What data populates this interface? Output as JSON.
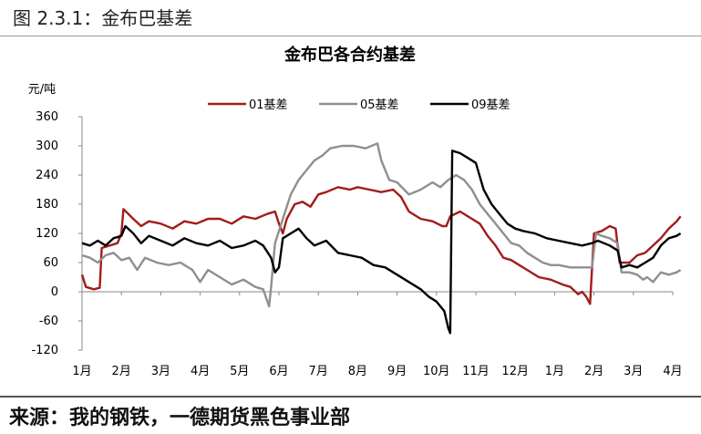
{
  "figure": {
    "caption": "图 2.3.1：金布巴基差",
    "source": "来源：我的钢铁，一德期货黑色事业部"
  },
  "colors": {
    "series_01": "#a31b1b",
    "series_05": "#8f8f8f",
    "series_09": "#000000"
  },
  "chart_data": {
    "type": "line",
    "title": "金布巴各合约基差",
    "ylabel": "元/吨",
    "xlabel": "",
    "ylim": [
      -120,
      360
    ],
    "yticks": [
      -120,
      -60,
      0,
      60,
      120,
      180,
      240,
      300,
      360
    ],
    "x_categories": [
      "1月",
      "2月",
      "3月",
      "4月",
      "5月",
      "6月",
      "7月",
      "8月",
      "9月",
      "10月",
      "11月",
      "12月",
      "1月",
      "2月",
      "3月",
      "4月"
    ],
    "legend_position": "top-center",
    "series": [
      {
        "name": "01基差",
        "color": "#a31b1b",
        "points": [
          [
            0.0,
            35
          ],
          [
            0.1,
            10
          ],
          [
            0.3,
            5
          ],
          [
            0.45,
            8
          ],
          [
            0.5,
            90
          ],
          [
            0.7,
            95
          ],
          [
            0.9,
            100
          ],
          [
            1.0,
            120
          ],
          [
            1.05,
            170
          ],
          [
            1.3,
            150
          ],
          [
            1.5,
            135
          ],
          [
            1.7,
            145
          ],
          [
            2.0,
            140
          ],
          [
            2.3,
            130
          ],
          [
            2.6,
            145
          ],
          [
            2.9,
            140
          ],
          [
            3.2,
            150
          ],
          [
            3.5,
            150
          ],
          [
            3.8,
            140
          ],
          [
            4.1,
            155
          ],
          [
            4.4,
            150
          ],
          [
            4.7,
            160
          ],
          [
            4.9,
            165
          ],
          [
            5.0,
            140
          ],
          [
            5.1,
            120
          ],
          [
            5.2,
            150
          ],
          [
            5.4,
            180
          ],
          [
            5.6,
            185
          ],
          [
            5.8,
            175
          ],
          [
            6.0,
            200
          ],
          [
            6.2,
            205
          ],
          [
            6.5,
            215
          ],
          [
            6.8,
            210
          ],
          [
            7.0,
            215
          ],
          [
            7.3,
            210
          ],
          [
            7.6,
            205
          ],
          [
            7.9,
            210
          ],
          [
            8.1,
            195
          ],
          [
            8.3,
            165
          ],
          [
            8.6,
            150
          ],
          [
            8.9,
            145
          ],
          [
            9.15,
            135
          ],
          [
            9.25,
            135
          ],
          [
            9.35,
            155
          ],
          [
            9.6,
            165
          ],
          [
            9.9,
            150
          ],
          [
            10.1,
            140
          ],
          [
            10.3,
            115
          ],
          [
            10.5,
            95
          ],
          [
            10.7,
            70
          ],
          [
            10.9,
            65
          ],
          [
            11.1,
            55
          ],
          [
            11.3,
            45
          ],
          [
            11.6,
            30
          ],
          [
            11.9,
            25
          ],
          [
            12.2,
            15
          ],
          [
            12.4,
            10
          ],
          [
            12.6,
            -5
          ],
          [
            12.7,
            0
          ],
          [
            12.8,
            -10
          ],
          [
            12.9,
            -25
          ],
          [
            13.0,
            120
          ],
          [
            13.2,
            125
          ],
          [
            13.4,
            135
          ],
          [
            13.55,
            130
          ],
          [
            13.65,
            60
          ],
          [
            13.9,
            60
          ],
          [
            14.1,
            75
          ],
          [
            14.3,
            80
          ],
          [
            14.5,
            95
          ],
          [
            14.7,
            110
          ],
          [
            14.9,
            130
          ],
          [
            15.1,
            145
          ],
          [
            15.2,
            155
          ]
        ]
      },
      {
        "name": "05基差",
        "color": "#8f8f8f",
        "points": [
          [
            0.0,
            75
          ],
          [
            0.2,
            70
          ],
          [
            0.4,
            60
          ],
          [
            0.6,
            75
          ],
          [
            0.8,
            80
          ],
          [
            1.0,
            65
          ],
          [
            1.2,
            70
          ],
          [
            1.4,
            45
          ],
          [
            1.6,
            70
          ],
          [
            1.9,
            60
          ],
          [
            2.2,
            55
          ],
          [
            2.5,
            60
          ],
          [
            2.8,
            45
          ],
          [
            3.0,
            20
          ],
          [
            3.2,
            45
          ],
          [
            3.5,
            30
          ],
          [
            3.8,
            15
          ],
          [
            4.1,
            25
          ],
          [
            4.4,
            10
          ],
          [
            4.6,
            5
          ],
          [
            4.75,
            -30
          ],
          [
            4.8,
            10
          ],
          [
            4.9,
            100
          ],
          [
            5.1,
            150
          ],
          [
            5.3,
            200
          ],
          [
            5.5,
            230
          ],
          [
            5.7,
            250
          ],
          [
            5.9,
            270
          ],
          [
            6.1,
            280
          ],
          [
            6.3,
            295
          ],
          [
            6.6,
            300
          ],
          [
            6.9,
            300
          ],
          [
            7.2,
            295
          ],
          [
            7.5,
            305
          ],
          [
            7.6,
            270
          ],
          [
            7.8,
            230
          ],
          [
            8.0,
            225
          ],
          [
            8.3,
            200
          ],
          [
            8.6,
            210
          ],
          [
            8.9,
            225
          ],
          [
            9.1,
            215
          ],
          [
            9.3,
            230
          ],
          [
            9.5,
            240
          ],
          [
            9.7,
            230
          ],
          [
            9.9,
            210
          ],
          [
            10.1,
            180
          ],
          [
            10.3,
            160
          ],
          [
            10.5,
            140
          ],
          [
            10.7,
            120
          ],
          [
            10.9,
            100
          ],
          [
            11.1,
            95
          ],
          [
            11.3,
            80
          ],
          [
            11.5,
            70
          ],
          [
            11.7,
            60
          ],
          [
            11.9,
            55
          ],
          [
            12.1,
            55
          ],
          [
            12.4,
            50
          ],
          [
            12.7,
            50
          ],
          [
            12.95,
            50
          ],
          [
            13.05,
            120
          ],
          [
            13.2,
            115
          ],
          [
            13.4,
            110
          ],
          [
            13.6,
            100
          ],
          [
            13.7,
            40
          ],
          [
            13.9,
            40
          ],
          [
            14.1,
            35
          ],
          [
            14.25,
            25
          ],
          [
            14.35,
            30
          ],
          [
            14.5,
            20
          ],
          [
            14.7,
            40
          ],
          [
            14.9,
            35
          ],
          [
            15.1,
            40
          ],
          [
            15.2,
            45
          ]
        ]
      },
      {
        "name": "09基差",
        "color": "#000000",
        "points": [
          [
            0.0,
            100
          ],
          [
            0.2,
            95
          ],
          [
            0.4,
            105
          ],
          [
            0.6,
            95
          ],
          [
            0.8,
            110
          ],
          [
            1.0,
            115
          ],
          [
            1.1,
            135
          ],
          [
            1.3,
            120
          ],
          [
            1.5,
            100
          ],
          [
            1.7,
            115
          ],
          [
            2.0,
            105
          ],
          [
            2.3,
            95
          ],
          [
            2.6,
            110
          ],
          [
            2.9,
            100
          ],
          [
            3.2,
            95
          ],
          [
            3.5,
            105
          ],
          [
            3.8,
            90
          ],
          [
            4.1,
            95
          ],
          [
            4.4,
            105
          ],
          [
            4.6,
            95
          ],
          [
            4.8,
            70
          ],
          [
            4.9,
            40
          ],
          [
            5.0,
            50
          ],
          [
            5.1,
            110
          ],
          [
            5.3,
            120
          ],
          [
            5.5,
            130
          ],
          [
            5.7,
            110
          ],
          [
            5.9,
            95
          ],
          [
            6.2,
            105
          ],
          [
            6.5,
            80
          ],
          [
            6.8,
            75
          ],
          [
            7.1,
            70
          ],
          [
            7.4,
            55
          ],
          [
            7.7,
            50
          ],
          [
            8.0,
            35
          ],
          [
            8.3,
            20
          ],
          [
            8.6,
            5
          ],
          [
            8.8,
            -10
          ],
          [
            9.0,
            -20
          ],
          [
            9.2,
            -40
          ],
          [
            9.3,
            -75
          ],
          [
            9.35,
            -85
          ],
          [
            9.4,
            290
          ],
          [
            9.6,
            285
          ],
          [
            9.8,
            275
          ],
          [
            10.0,
            265
          ],
          [
            10.2,
            210
          ],
          [
            10.4,
            180
          ],
          [
            10.6,
            160
          ],
          [
            10.8,
            140
          ],
          [
            11.0,
            130
          ],
          [
            11.2,
            125
          ],
          [
            11.5,
            120
          ],
          [
            11.8,
            110
          ],
          [
            12.1,
            105
          ],
          [
            12.4,
            100
          ],
          [
            12.7,
            95
          ],
          [
            12.95,
            100
          ],
          [
            13.1,
            105
          ],
          [
            13.4,
            95
          ],
          [
            13.6,
            85
          ],
          [
            13.7,
            50
          ],
          [
            13.9,
            55
          ],
          [
            14.1,
            50
          ],
          [
            14.3,
            60
          ],
          [
            14.5,
            70
          ],
          [
            14.7,
            95
          ],
          [
            14.9,
            110
          ],
          [
            15.1,
            115
          ],
          [
            15.2,
            120
          ]
        ]
      }
    ]
  }
}
